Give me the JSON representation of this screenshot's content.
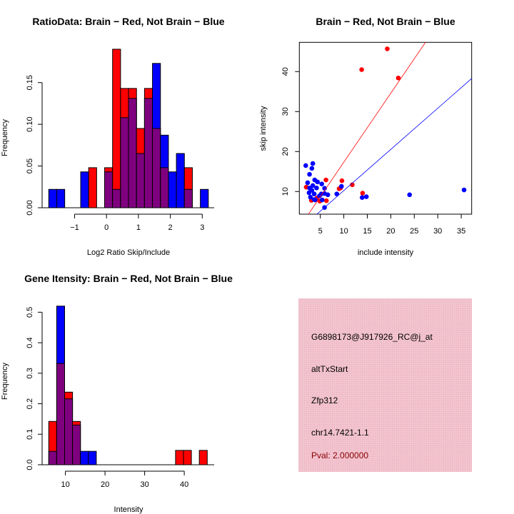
{
  "colors": {
    "red": "#ff0000",
    "blue": "#0000ff",
    "overlap": "#7f007f",
    "info_bg": "#f2c4cf",
    "pval": "#8b0000"
  },
  "chart_data": [
    {
      "type": "bar",
      "title": "RatioData: Brain − Red, Not Brain − Blue",
      "xlabel": "Log2 Ratio Skip/Include",
      "ylabel": "Frequency",
      "bin_start": -1.81,
      "bin_width": 0.25,
      "series": [
        {
          "name": "Brain",
          "color": "red",
          "values": [
            0,
            0,
            0,
            0,
            0,
            0.048,
            0,
            0.048,
            0.19,
            0.143,
            0.143,
            0.095,
            0.143,
            0.095,
            0.048,
            0,
            0,
            0.048,
            0,
            0
          ]
        },
        {
          "name": "Not Brain",
          "color": "blue",
          "values": [
            0.022,
            0.022,
            0,
            0,
            0.043,
            0,
            0,
            0.043,
            0.022,
            0.108,
            0.131,
            0.065,
            0.131,
            0.173,
            0.087,
            0.043,
            0.065,
            0.022,
            0,
            0.022
          ]
        }
      ],
      "xticks": [
        -1,
        0,
        1,
        2,
        3
      ],
      "xtick_labels": [
        "−1",
        "0",
        "1",
        "2",
        "3"
      ],
      "yticks": [
        0,
        0.05,
        0.1,
        0.15
      ],
      "ytick_labels": [
        "0.00",
        "0.05",
        "0.10",
        "0.15"
      ],
      "xlim": [
        -1.81,
        3.19
      ],
      "ylim": [
        0,
        0.19
      ]
    },
    {
      "type": "scatter",
      "title": "Brain − Red, Not Brain − Blue",
      "xlabel": "include intensity",
      "ylabel": "skip intensity",
      "xlim": [
        0.5,
        37.2
      ],
      "ylim": [
        4.3,
        47.3
      ],
      "xticks": [
        5,
        10,
        15,
        20,
        25,
        30,
        35
      ],
      "xtick_labels": [
        "5",
        "10",
        "15",
        "20",
        "25",
        "30",
        "35"
      ],
      "yticks": [
        10,
        20,
        30,
        40
      ],
      "ytick_labels": [
        "10",
        "20",
        "30",
        "40"
      ],
      "series": [
        {
          "name": "Brain",
          "color": "red",
          "points": [
            [
              19.25,
              45.7
            ],
            [
              13.8,
              40.5
            ],
            [
              21.6,
              38.4
            ],
            [
              6.2,
              12.9
            ],
            [
              9.6,
              12.7
            ],
            [
              9.0,
              10.7
            ],
            [
              9.3,
              10.9
            ],
            [
              11.8,
              11.7
            ],
            [
              14.0,
              9.6
            ],
            [
              2.0,
              11.1
            ],
            [
              3.1,
              7.8
            ],
            [
              4.9,
              7.6
            ],
            [
              6.3,
              7.7
            ],
            [
              4.3,
              8.4
            ]
          ],
          "fit": {
            "slope": 1.725,
            "intercept": 0.09
          }
        },
        {
          "name": "Not Brain",
          "color": "blue",
          "points": [
            [
              1.9,
              16.5
            ],
            [
              3.4,
              17.0
            ],
            [
              3.2,
              15.8
            ],
            [
              2.7,
              14.3
            ],
            [
              2.3,
              12.2
            ],
            [
              3.8,
              12.9
            ],
            [
              4.4,
              12.4
            ],
            [
              5.3,
              11.9
            ],
            [
              9.5,
              11.3
            ],
            [
              5.9,
              10.8
            ],
            [
              2.7,
              10.9
            ],
            [
              3.2,
              10.3
            ],
            [
              2.6,
              9.7
            ],
            [
              3.7,
              9.4
            ],
            [
              2.9,
              8.6
            ],
            [
              3.7,
              8.0
            ],
            [
              4.8,
              8.9
            ],
            [
              5.9,
              9.5
            ],
            [
              6.6,
              9.2
            ],
            [
              8.5,
              9.4
            ],
            [
              13.9,
              8.5
            ],
            [
              14.8,
              8.7
            ],
            [
              24.0,
              9.2
            ],
            [
              35.6,
              10.4
            ],
            [
              5.9,
              6.0
            ],
            [
              5.2,
              9.4
            ],
            [
              4.2,
              10.9
            ],
            [
              3.4,
              11.5
            ],
            [
              3.9,
              7.9
            ],
            [
              5.4,
              7.9
            ]
          ],
          "fit": {
            "slope": 1.03,
            "intercept": -0.06
          }
        }
      ]
    },
    {
      "type": "bar",
      "title": "Gene Itensity: Brain − Red, Not Brain − Blue",
      "xlabel": "Intensity",
      "ylabel": "Frequency",
      "bin_start": 5.8,
      "bin_width": 2,
      "series": [
        {
          "name": "Brain",
          "color": "red",
          "values": [
            0.142,
            0.332,
            0.238,
            0.142,
            0,
            0,
            0,
            0,
            0,
            0,
            0,
            0,
            0,
            0,
            0,
            0,
            0.047,
            0.047,
            0,
            0.047
          ]
        },
        {
          "name": "Not Brain",
          "color": "blue",
          "values": [
            0.044,
            0.52,
            0.216,
            0.13,
            0.044,
            0.044,
            0,
            0,
            0,
            0,
            0,
            0,
            0,
            0,
            0,
            0,
            0,
            0,
            0,
            0
          ]
        }
      ],
      "xticks": [
        10,
        20,
        30,
        40
      ],
      "xtick_labels": [
        "10",
        "20",
        "30",
        "40"
      ],
      "yticks": [
        0,
        0.1,
        0.2,
        0.3,
        0.4,
        0.5
      ],
      "ytick_labels": [
        "0.0",
        "0.1",
        "0.2",
        "0.3",
        "0.4",
        "0.5"
      ],
      "xlim": [
        5.8,
        45.8
      ],
      "ylim": [
        0,
        0.52
      ]
    }
  ],
  "info": {
    "probe_id": "G6898173@J917926_RC@j_at",
    "event_type": "altTxStart",
    "gene": "Zfp312",
    "location": "chr14.7421-1.1",
    "pval": "Pval: 2.000000"
  }
}
